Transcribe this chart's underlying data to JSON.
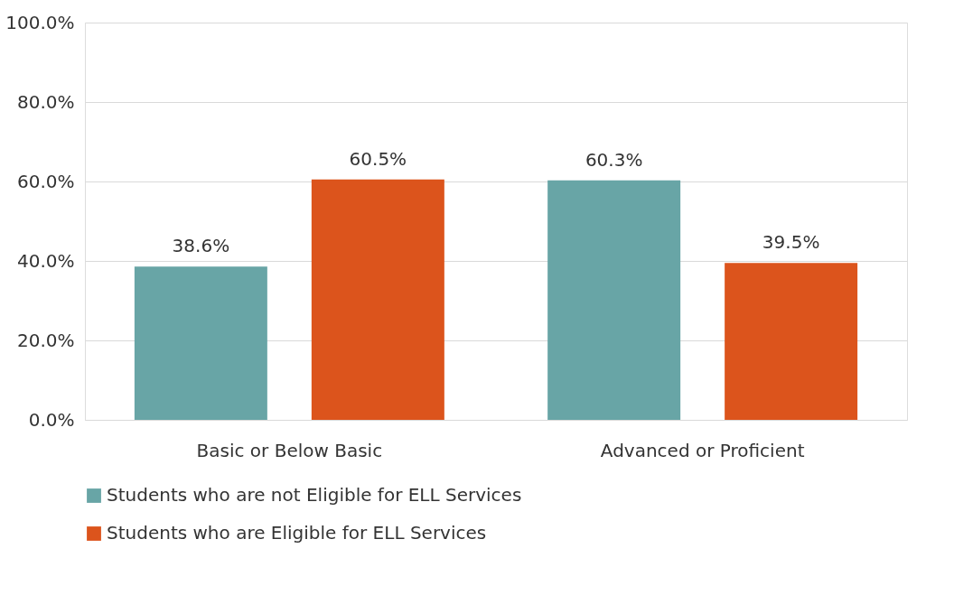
{
  "chart_data": {
    "type": "bar",
    "categories": [
      "Basic or Below Basic",
      "Advanced or Proficient"
    ],
    "series": [
      {
        "name": "Students who are not Eligible for ELL Services",
        "color": "#68a5a6",
        "values": [
          38.6,
          60.3
        ]
      },
      {
        "name": "Students who are Eligible for ELL Services",
        "color": "#dc541c",
        "values": [
          60.5,
          39.5
        ]
      }
    ],
    "value_labels": [
      [
        "38.6%",
        "60.3%"
      ],
      [
        "60.5%",
        "39.5%"
      ]
    ],
    "ylim": [
      0,
      100
    ],
    "yticks": [
      {
        "value": 0,
        "label": "0.0%"
      },
      {
        "value": 20,
        "label": "20.0%"
      },
      {
        "value": 40,
        "label": "40.0%"
      },
      {
        "value": 60,
        "label": "60.0%"
      },
      {
        "value": 80,
        "label": "80.0%"
      },
      {
        "value": 100,
        "label": "100.0%"
      }
    ],
    "grid": "y",
    "legend": "bottom"
  }
}
